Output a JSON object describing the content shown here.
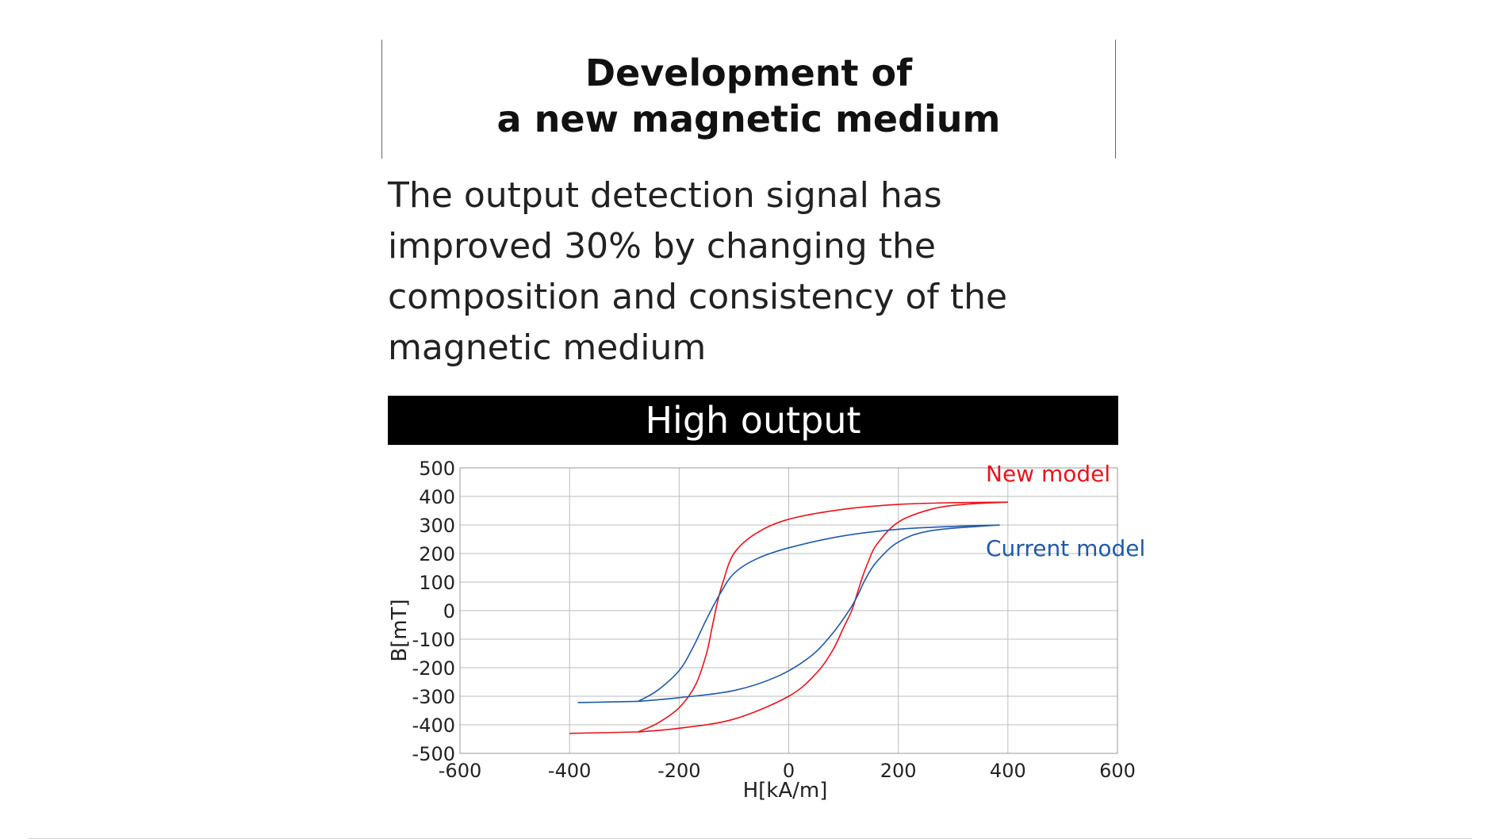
{
  "slide": {
    "title_line1": "Development of",
    "title_line2": "a new magnetic medium",
    "body_lines": [
      "The output detection signal has",
      "improved 30% by changing the",
      "composition and consistency of the",
      "magnetic medium"
    ],
    "banner": "High output"
  },
  "chart_data": {
    "type": "line",
    "title": "High output",
    "xlabel": "H[kA/m]",
    "ylabel": "B[mT]",
    "xlim": [
      -600,
      600
    ],
    "ylim": [
      -500,
      500
    ],
    "xticks": [
      -600,
      -400,
      -200,
      0,
      200,
      400,
      600
    ],
    "yticks": [
      500,
      400,
      300,
      200,
      100,
      0,
      -100,
      -200,
      -300,
      -400,
      -500
    ],
    "grid": true,
    "legend": "direct-labels-top-right",
    "series": [
      {
        "name": "New model",
        "color": "#e8141c",
        "branches": [
          {
            "x": [
              400,
              300,
              200,
              100,
              0,
              -60,
              -100,
              -120,
              -130,
              -140,
              -150,
              -170,
              -200,
              -240,
              -275
            ],
            "y": [
              380,
              378,
              372,
              355,
              320,
              270,
              200,
              100,
              30,
              -60,
              -150,
              -260,
              -340,
              -395,
              -425
            ]
          },
          {
            "x": [
              -275,
              -200,
              -100,
              0,
              50,
              80,
              100,
              115,
              125,
              135,
              145,
              160,
              200,
              260,
              320,
              400
            ],
            "y": [
              -425,
              -412,
              -380,
              -300,
              -220,
              -140,
              -60,
              0,
              60,
              120,
              170,
              230,
              310,
              355,
              372,
              380
            ]
          },
          {
            "x": [
              -275,
              -400
            ],
            "y": [
              -425,
              -430
            ]
          }
        ]
      },
      {
        "name": "Current model",
        "color": "#1f5aa8",
        "branches": [
          {
            "x": [
              385,
              300,
              200,
              100,
              0,
              -60,
              -100,
              -125,
              -150,
              -175,
              -200,
              -240,
              -275
            ],
            "y": [
              300,
              295,
              285,
              262,
              220,
              180,
              130,
              60,
              -30,
              -130,
              -210,
              -280,
              -318
            ]
          },
          {
            "x": [
              -275,
              -200,
              -100,
              -20,
              40,
              80,
              110,
              125,
              140,
              160,
              200,
              260,
              385
            ],
            "y": [
              -318,
              -305,
              -280,
              -230,
              -160,
              -80,
              0,
              50,
              110,
              170,
              240,
              280,
              300
            ]
          },
          {
            "x": [
              -275,
              -385
            ],
            "y": [
              -318,
              -322
            ]
          }
        ]
      }
    ]
  }
}
